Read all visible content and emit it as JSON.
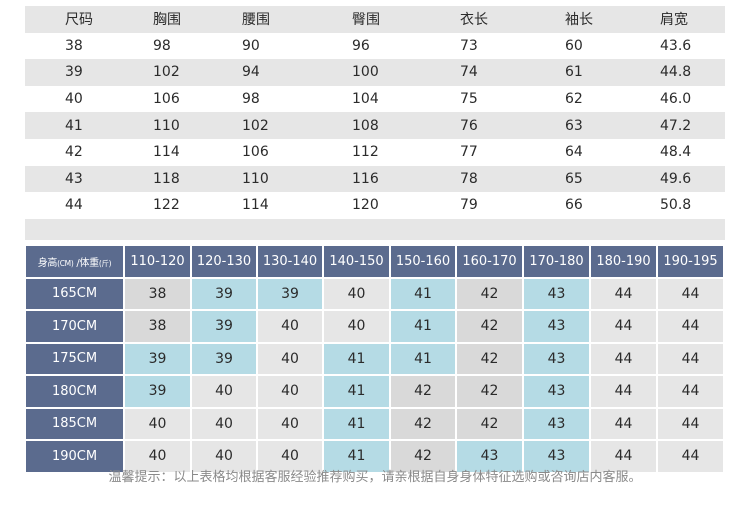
{
  "size_table": {
    "headers": [
      "尺码",
      "胸围",
      "腰围",
      "臀围",
      "衣长",
      "袖长",
      "肩宽"
    ],
    "rows": [
      [
        "38",
        "98",
        "90",
        "96",
        "73",
        "60",
        "43.6"
      ],
      [
        "39",
        "102",
        "94",
        "100",
        "74",
        "61",
        "44.8"
      ],
      [
        "40",
        "106",
        "98",
        "104",
        "75",
        "62",
        "46.0"
      ],
      [
        "41",
        "110",
        "102",
        "108",
        "76",
        "63",
        "47.2"
      ],
      [
        "42",
        "114",
        "106",
        "112",
        "77",
        "64",
        "48.4"
      ],
      [
        "43",
        "118",
        "110",
        "116",
        "78",
        "65",
        "49.6"
      ],
      [
        "44",
        "122",
        "114",
        "120",
        "79",
        "66",
        "50.8"
      ]
    ]
  },
  "rec_table": {
    "corner": {
      "height": "身高",
      "height_unit": "(CM)",
      "sep": " /体重",
      "weight_unit": "(斤)"
    },
    "columns": [
      "110-120",
      "120-130",
      "130-140",
      "140-150",
      "150-160",
      "160-170",
      "170-180",
      "180-190",
      "190-195"
    ],
    "rows": [
      {
        "label": "165CM",
        "values": [
          "38",
          "39",
          "39",
          "40",
          "41",
          "42",
          "43",
          "44",
          "44"
        ]
      },
      {
        "label": "170CM",
        "values": [
          "38",
          "39",
          "40",
          "40",
          "41",
          "42",
          "43",
          "44",
          "44"
        ]
      },
      {
        "label": "175CM",
        "values": [
          "39",
          "39",
          "40",
          "41",
          "41",
          "42",
          "43",
          "44",
          "44"
        ]
      },
      {
        "label": "180CM",
        "values": [
          "39",
          "40",
          "40",
          "41",
          "42",
          "42",
          "43",
          "44",
          "44"
        ]
      },
      {
        "label": "185CM",
        "values": [
          "40",
          "40",
          "40",
          "41",
          "42",
          "42",
          "43",
          "44",
          "44"
        ]
      },
      {
        "label": "190CM",
        "values": [
          "40",
          "40",
          "40",
          "41",
          "42",
          "43",
          "43",
          "44",
          "44"
        ]
      }
    ],
    "size_colors": {
      "38": "#d9d9d9",
      "39": "#b5dbe5",
      "40": "#e6e6e6",
      "41": "#b5dbe5",
      "42": "#d9d9d9",
      "43": "#b5dbe5",
      "44": "#e6e6e6"
    }
  },
  "note": "温馨提示：以上表格均根据客服经验推荐购买，请亲根据自身身体特征选购或咨询店内客服。"
}
